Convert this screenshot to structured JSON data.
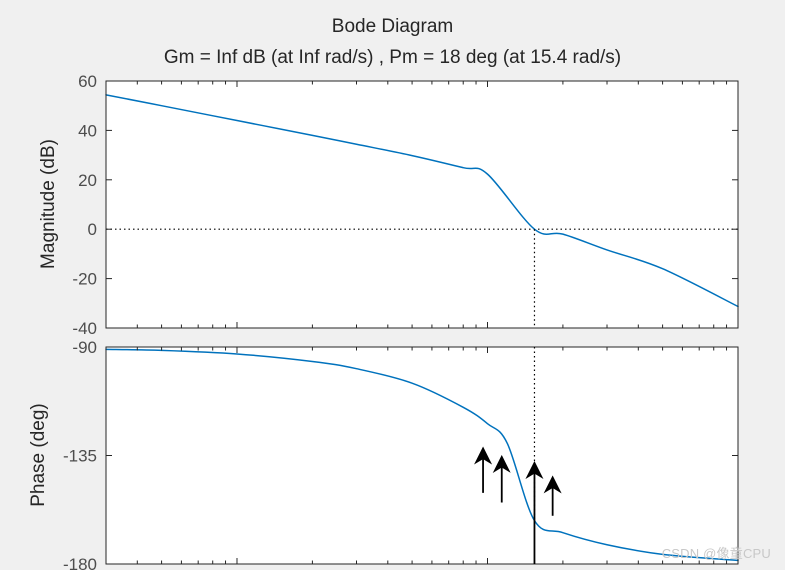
{
  "figure": {
    "title": "Bode Diagram",
    "subtitle": "Gm = Inf dB (at Inf rad/s) ,  Pm = 18 deg (at 15.4 rad/s)"
  },
  "watermark": "CSDN @像童CPU",
  "chart_data": [
    {
      "type": "line",
      "name": "magnitude",
      "ylabel": "Magnitude (dB)",
      "xlabel": "",
      "xscale": "log",
      "xlim": [
        0.3,
        100
      ],
      "ylim": [
        -40,
        60
      ],
      "yticks": [
        60,
        40,
        20,
        0,
        -20,
        -40
      ],
      "ytick_labels": [
        "60",
        "40",
        "20",
        "0",
        "-20",
        "-40"
      ],
      "grid": false,
      "series": [
        {
          "color": "#0072bd",
          "x": [
            0.3,
            0.5,
            1,
            2,
            3,
            5,
            8,
            10,
            15.4,
            20,
            30,
            50,
            100
          ],
          "y": [
            54.4,
            50,
            44,
            38,
            34.4,
            29.8,
            24.9,
            22.3,
            0,
            -2,
            -8.4,
            -16,
            -31.3
          ]
        }
      ],
      "crossover": {
        "x": 15.4,
        "y": 0
      },
      "ref_line_y": 0
    },
    {
      "type": "line",
      "name": "phase",
      "ylabel": "Phase (deg)",
      "xlabel": "",
      "xscale": "log",
      "xlim": [
        0.3,
        100
      ],
      "ylim": [
        -180,
        -90
      ],
      "yticks": [
        -90,
        -135,
        -180
      ],
      "ytick_labels": [
        "-90",
        "-135",
        "-180"
      ],
      "grid": false,
      "series": [
        {
          "color": "#0072bd",
          "x": [
            0.3,
            0.5,
            1,
            2,
            3,
            5,
            8,
            10,
            12,
            15.4,
            20,
            30,
            50,
            100
          ],
          "y": [
            -91,
            -91.4,
            -92.9,
            -96,
            -99,
            -105,
            -115,
            -121.8,
            -130,
            -162,
            -167,
            -172,
            -176,
            -178.5
          ]
        }
      ],
      "phase_margin_point": {
        "x": 15.4,
        "y": -162
      },
      "annotation_arrows": [
        {
          "x": 9.6,
          "y_tail": -150.5,
          "y_tip": -135
        },
        {
          "x": 11.4,
          "y_tail": -154.5,
          "y_tip": -138.5
        },
        {
          "x": 15.4,
          "y_tail": -180,
          "y_tip": -141
        },
        {
          "x": 18.2,
          "y_tail": -160,
          "y_tip": -147
        }
      ]
    }
  ]
}
